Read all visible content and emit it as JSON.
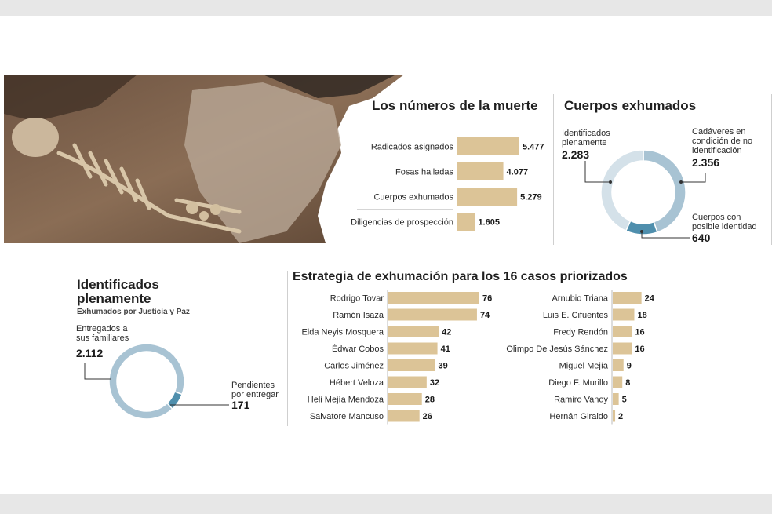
{
  "colors": {
    "bar": "#dcc497",
    "ring_main": "#a8c3d3",
    "ring_light": "#d4e1e9",
    "ring_accent": "#4f8fad"
  },
  "top_right": {
    "title": "Los números de la muerte",
    "chart_data": {
      "type": "bar",
      "orientation": "horizontal",
      "categories": [
        "Radicados asignados",
        "Fosas halladas",
        "Cuerpos exhumados",
        "Diligencias de prospección"
      ],
      "values": [
        5477,
        4077,
        5279,
        1605
      ],
      "value_labels": [
        "5.477",
        "4.077",
        "5.279",
        "1.605"
      ]
    }
  },
  "cuerpos": {
    "title": "Cuerpos exhumados",
    "chart_data": {
      "type": "pie",
      "donut": true,
      "labels": [
        "Identificados plenamente",
        "Cadáveres en condición de no identificación",
        "Cuerpos con posible identidad"
      ],
      "values": [
        2283,
        2356,
        640
      ],
      "value_labels": [
        "2.283",
        "2.356",
        "640"
      ]
    },
    "label_lines": {
      "identificados": [
        "Identificados",
        "plenamente"
      ],
      "cadaveres": [
        "Cadáveres en",
        "condición de no",
        "identificación"
      ],
      "posible": [
        "Cuerpos con",
        "posible identidad"
      ]
    }
  },
  "identificados": {
    "title_lines": [
      "Identificados",
      "plenamente"
    ],
    "subtitle": "Exhumados por Justicia y Paz",
    "chart_data": {
      "type": "pie",
      "donut": true,
      "labels": [
        "Entregados a sus familiares",
        "Pendientes por entregar"
      ],
      "values": [
        2112,
        171
      ],
      "value_labels": [
        "2.112",
        "171"
      ]
    },
    "label_lines": {
      "entregados": [
        "Entregados a",
        "sus familiares"
      ],
      "pendientes": [
        "Pendientes",
        "por entregar"
      ]
    }
  },
  "estrategia": {
    "title": "Estrategia de exhumación para los 16 casos priorizados",
    "chart_data": [
      {
        "type": "bar",
        "orientation": "horizontal",
        "categories": [
          "Rodrigo Tovar",
          "Ramón Isaza",
          "Elda Neyis Mosquera",
          "Édwar Cobos",
          "Carlos Jiménez",
          "Hébert Veloza",
          "Heli Mejía Mendoza",
          "Salvatore Mancuso"
        ],
        "values": [
          76,
          74,
          42,
          41,
          39,
          32,
          28,
          26
        ]
      },
      {
        "type": "bar",
        "orientation": "horizontal",
        "categories": [
          "Arnubio Triana",
          "Luis E. Cifuentes",
          "Fredy Rendón",
          "Olimpo De Jesús Sánchez",
          "Miguel Mejía",
          "Diego F. Murillo",
          "Ramiro Vanoy",
          "Hernán Giraldo"
        ],
        "values": [
          24,
          18,
          16,
          16,
          9,
          8,
          5,
          2
        ]
      }
    ]
  }
}
